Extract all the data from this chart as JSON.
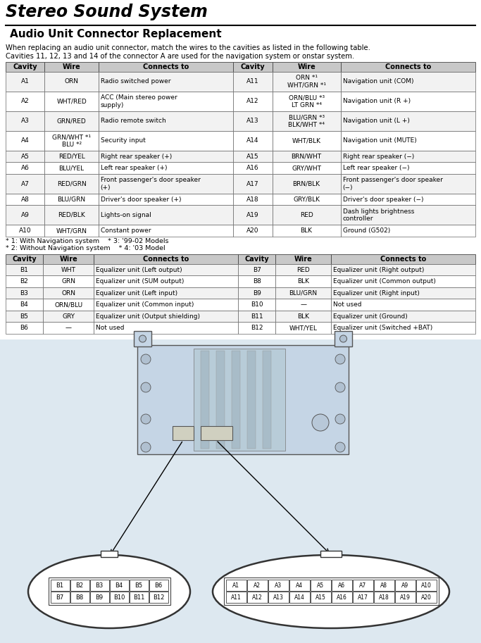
{
  "title": "Stereo Sound System",
  "subtitle": "Audio Unit Connector Replacement",
  "intro_text": "When replacing an audio unit connector, match the wires to the cavities as listed in the following table.\nCavities 11, 12, 13 and 14 of the connector A are used for the navigation system or onstar system.",
  "footnotes": "* 1: With Navigation system    * 3: '99-02 Models\n* 2: Without Navigation system    * 4: '03 Model",
  "table_a_headers": [
    "Cavity",
    "Wire",
    "Connects to",
    "Cavity",
    "Wire",
    "Connects to"
  ],
  "table_a_rows": [
    [
      "A1",
      "ORN",
      "Radio switched power",
      "A11",
      "ORN *¹\nWHT/GRN *¹",
      "Navigation unit (COM)"
    ],
    [
      "A2",
      "WHT/RED",
      "ACC (Main stereo power\nsupply)",
      "A12",
      "ORN/BLU *³\nLT GRN *⁴",
      "Navigation unit (R +)"
    ],
    [
      "A3",
      "GRN/RED",
      "Radio remote switch",
      "A13",
      "BLU/GRN *³\nBLK/WHT *⁴",
      "Navigation unit (L +)"
    ],
    [
      "A4",
      "GRN/WHT *¹\nBLU *²",
      "Security input",
      "A14",
      "WHT/BLK",
      "Navigation unit (MUTE)"
    ],
    [
      "A5",
      "RED/YEL",
      "Right rear speaker (+)",
      "A15",
      "BRN/WHT",
      "Right rear speaker (−)"
    ],
    [
      "A6",
      "BLU/YEL",
      "Left rear speaker (+)",
      "A16",
      "GRY/WHT",
      "Left rear speaker (−)"
    ],
    [
      "A7",
      "RED/GRN",
      "Front passenger's door speaker\n(+)",
      "A17",
      "BRN/BLK",
      "Front passenger's door speaker\n(−)"
    ],
    [
      "A8",
      "BLU/GRN",
      "Driver's door speaker (+)",
      "A18",
      "GRY/BLK",
      "Driver's door speaker (−)"
    ],
    [
      "A9",
      "RED/BLK",
      "Lights-on signal",
      "A19",
      "RED",
      "Dash lights brightness\ncontroller"
    ],
    [
      "A10",
      "WHT/GRN",
      "Constant power",
      "A20",
      "BLK",
      "Ground (G502)"
    ]
  ],
  "table_b_headers": [
    "Cavity",
    "Wire",
    "Connects to",
    "Cavity",
    "Wire",
    "Connects to"
  ],
  "table_b_rows": [
    [
      "B1",
      "WHT",
      "Equalizer unit (Left output)",
      "B7",
      "RED",
      "Equalizer unit (Right output)"
    ],
    [
      "B2",
      "GRN",
      "Equalizer unit (SUM output)",
      "B8",
      "BLK",
      "Equalizer unit (Common output)"
    ],
    [
      "B3",
      "ORN",
      "Equalizer unit (Left input)",
      "B9",
      "BLU/GRN",
      "Equalizer unit (Right input)"
    ],
    [
      "B4",
      "ORN/BLU",
      "Equalizer unit (Common input)",
      "B10",
      "—",
      "Not used"
    ],
    [
      "B5",
      "GRY",
      "Equalizer unit (Output shielding)",
      "B11",
      "BLK",
      "Equalizer unit (Ground)"
    ],
    [
      "B6",
      "—",
      "Not used",
      "B12",
      "WHT/YEL",
      "Equalizer unit (Switched +BAT)"
    ]
  ],
  "connector_b_cavities": [
    "B1",
    "B2",
    "B3",
    "B4",
    "B5",
    "B6",
    "B7",
    "B8",
    "B9",
    "B10",
    "B11",
    "B12"
  ],
  "connector_a_cavities": [
    "A1",
    "A2",
    "A3",
    "A4",
    "A5",
    "A6",
    "A7",
    "A8",
    "A9",
    "A10",
    "A11",
    "A12",
    "A13",
    "A14",
    "A15",
    "A16",
    "A17",
    "A18",
    "A19",
    "A20"
  ]
}
